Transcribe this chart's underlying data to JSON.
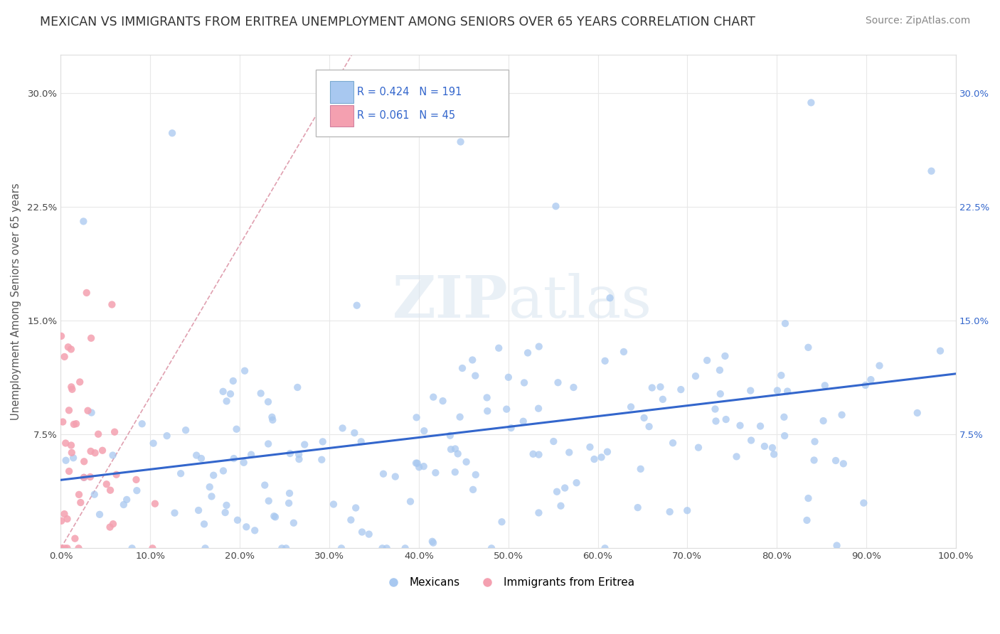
{
  "title": "MEXICAN VS IMMIGRANTS FROM ERITREA UNEMPLOYMENT AMONG SENIORS OVER 65 YEARS CORRELATION CHART",
  "source": "Source: ZipAtlas.com",
  "ylabel": "Unemployment Among Seniors over 65 years",
  "watermark": "ZIPatlas",
  "legend_mexican": "Mexicans",
  "legend_eritrea": "Immigrants from Eritrea",
  "R_mexican": 0.424,
  "N_mexican": 191,
  "R_eritrea": 0.061,
  "N_eritrea": 45,
  "mexican_color": "#a8c8f0",
  "eritrea_color": "#f4a0b0",
  "trend_mexican_color": "#3366cc",
  "diag_color": "#e0a0b0",
  "xlim": [
    0,
    1.0
  ],
  "ylim": [
    0,
    0.325
  ],
  "xticks": [
    0.0,
    0.1,
    0.2,
    0.3,
    0.4,
    0.5,
    0.6,
    0.7,
    0.8,
    0.9,
    1.0
  ],
  "yticks": [
    0.0,
    0.075,
    0.15,
    0.225,
    0.3
  ],
  "xtick_labels": [
    "0.0%",
    "10.0%",
    "20.0%",
    "30.0%",
    "40.0%",
    "50.0%",
    "60.0%",
    "70.0%",
    "80.0%",
    "90.0%",
    "100.0%"
  ],
  "ytick_labels": [
    "",
    "7.5%",
    "15.0%",
    "22.5%",
    "30.0%"
  ],
  "background_color": "#ffffff",
  "grid_color": "#e8e8e8",
  "title_color": "#333333",
  "title_fontsize": 12.5,
  "source_fontsize": 10,
  "legend_color": "#3366cc"
}
